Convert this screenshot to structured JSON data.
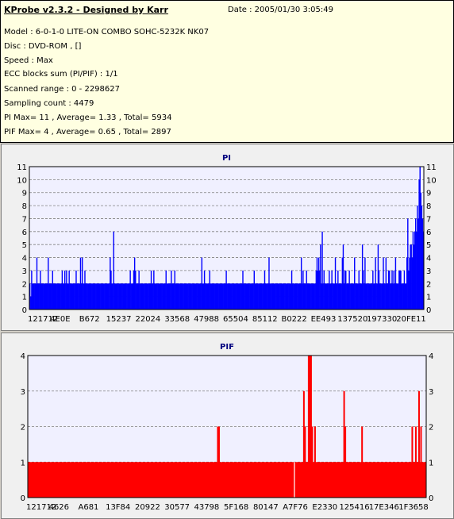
{
  "header": {
    "title": "KProbe v2.3.2 - Designed by Karr",
    "date": "Date : 2005/01/30 3:05:49",
    "lines": [
      "Model : 6-0-1-0 LITE-ON COMBO SOHC-5232K NK07",
      "Disc : DVD-ROM ,  []",
      "Speed : Max",
      "ECC blocks sum (PI/PIF) : 1/1",
      "Scanned range : 0 - 2298627",
      "Sampling count : 4479",
      "PI Max= 11 , Average= 1.33 , Total= 5934",
      "PIF Max= 4 , Average= 0.65 , Total= 2897"
    ]
  },
  "colors": {
    "pi": "#0000ff",
    "pif": "#ff0000",
    "plot_bg": "#f0f0ff"
  },
  "chart_data": [
    {
      "type": "bar",
      "title": "PI",
      "ylim": [
        0,
        11
      ],
      "yticks": [
        0,
        1,
        2,
        3,
        4,
        5,
        6,
        7,
        8,
        9,
        10,
        11
      ],
      "xtick_labels": [
        "121712",
        "4E0E",
        "B672",
        "15237",
        "22024",
        "33568",
        "47988",
        "65504",
        "85112",
        "B0222",
        "EE493",
        "137520",
        "197330",
        "20FE11"
      ],
      "grid": true,
      "values": [
        2,
        1,
        3,
        2,
        2,
        2,
        2,
        2,
        4,
        2,
        2,
        2,
        3,
        2,
        2,
        2,
        2,
        2,
        2,
        2,
        2,
        4,
        2,
        2,
        2,
        2,
        3,
        2,
        2,
        2,
        2,
        2,
        2,
        2,
        2,
        2,
        2,
        3,
        2,
        2,
        3,
        2,
        3,
        2,
        2,
        3,
        2,
        2,
        2,
        2,
        2,
        2,
        2,
        3,
        2,
        2,
        2,
        2,
        4,
        2,
        4,
        2,
        2,
        3,
        2,
        2,
        2,
        2,
        2,
        2,
        2,
        2,
        2,
        2,
        2,
        2,
        2,
        2,
        2,
        2,
        2,
        2,
        2,
        2,
        2,
        2,
        2,
        2,
        2,
        2,
        2,
        2,
        4,
        3,
        2,
        2,
        6,
        2,
        2,
        2,
        2,
        2,
        2,
        2,
        2,
        2,
        2,
        2,
        2,
        2,
        2,
        2,
        2,
        2,
        2,
        3,
        2,
        2,
        2,
        3,
        4,
        3,
        2,
        2,
        2,
        3,
        2,
        2,
        2,
        2,
        2,
        2,
        2,
        2,
        2,
        2,
        2,
        2,
        2,
        3,
        2,
        2,
        3,
        2,
        2,
        2,
        2,
        2,
        2,
        2,
        2,
        2,
        2,
        2,
        2,
        2,
        3,
        2,
        2,
        2,
        2,
        2,
        3,
        2,
        2,
        2,
        3,
        2,
        2,
        2,
        2,
        2,
        2,
        2,
        2,
        2,
        2,
        2,
        2,
        2,
        2,
        2,
        2,
        2,
        2,
        2,
        2,
        2,
        2,
        2,
        2,
        2,
        2,
        2,
        2,
        2,
        2,
        4,
        2,
        2,
        3,
        2,
        2,
        2,
        2,
        2,
        3,
        2,
        2,
        2,
        2,
        2,
        2,
        2,
        2,
        2,
        2,
        2,
        2,
        2,
        2,
        2,
        2,
        2,
        2,
        3,
        2,
        2,
        2,
        2,
        2,
        2,
        2,
        2,
        2,
        2,
        2,
        2,
        2,
        2,
        2,
        2,
        2,
        2,
        3,
        2,
        2,
        2,
        2,
        2,
        2,
        2,
        2,
        2,
        2,
        2,
        2,
        3,
        2,
        2,
        2,
        2,
        2,
        2,
        2,
        2,
        2,
        2,
        2,
        3,
        2,
        2,
        2,
        2,
        4,
        2,
        2,
        2,
        2,
        2,
        2,
        2,
        2,
        2,
        2,
        2,
        2,
        2,
        2,
        2,
        2,
        2,
        2,
        2,
        2,
        2,
        2,
        2,
        2,
        2,
        3,
        2,
        2,
        2,
        2,
        2,
        2,
        2,
        2,
        2,
        2,
        4,
        2,
        3,
        2,
        2,
        2,
        3,
        2,
        2,
        2,
        2,
        2,
        2,
        2,
        2,
        2,
        2,
        3,
        4,
        3,
        4,
        3,
        5,
        2,
        6,
        2,
        3,
        2,
        2,
        2,
        2,
        2,
        3,
        2,
        2,
        3,
        2,
        2,
        2,
        4,
        2,
        2,
        3,
        2,
        2,
        2,
        2,
        4,
        5,
        2,
        3,
        3,
        2,
        2,
        2,
        3,
        2,
        2,
        2,
        2,
        2,
        4,
        2,
        2,
        2,
        2,
        3,
        2,
        2,
        2,
        5,
        3,
        2,
        4,
        2,
        2,
        2,
        2,
        2,
        2,
        2,
        2,
        3,
        2,
        2,
        4,
        2,
        2,
        5,
        3,
        2,
        2,
        2,
        2,
        4,
        2,
        2,
        4,
        2,
        2,
        3,
        3,
        2,
        2,
        3,
        2,
        3,
        2,
        4,
        2,
        2,
        2,
        3,
        3,
        3,
        2,
        2,
        2,
        3,
        2,
        2,
        4,
        7,
        3,
        4,
        5,
        5,
        4,
        6,
        5,
        6,
        7,
        6,
        8,
        7,
        10,
        11,
        9,
        8,
        7,
        6
      ]
    },
    {
      "type": "bar",
      "title": "PIF",
      "ylim": [
        0,
        4
      ],
      "yticks": [
        0,
        1,
        2,
        3,
        4
      ],
      "xtick_labels": [
        "121712",
        "4626",
        "A681",
        "13F84",
        "20922",
        "30577",
        "43798",
        "5F168",
        "80147",
        "A7F76",
        "E2330",
        "125416",
        "17E346",
        "1F3658"
      ],
      "grid": true,
      "baseline": 1,
      "gaps": [
        0.668
      ],
      "spikes": [
        {
          "x": 0.475,
          "v": 2
        },
        {
          "x": 0.478,
          "v": 2
        },
        {
          "x": 0.691,
          "v": 3
        },
        {
          "x": 0.694,
          "v": 2
        },
        {
          "x": 0.703,
          "v": 4
        },
        {
          "x": 0.706,
          "v": 4
        },
        {
          "x": 0.709,
          "v": 4
        },
        {
          "x": 0.712,
          "v": 2
        },
        {
          "x": 0.719,
          "v": 2
        },
        {
          "x": 0.792,
          "v": 3
        },
        {
          "x": 0.795,
          "v": 2
        },
        {
          "x": 0.837,
          "v": 2
        },
        {
          "x": 0.963,
          "v": 2
        },
        {
          "x": 0.972,
          "v": 2
        },
        {
          "x": 0.98,
          "v": 3
        },
        {
          "x": 0.985,
          "v": 2
        }
      ]
    }
  ]
}
